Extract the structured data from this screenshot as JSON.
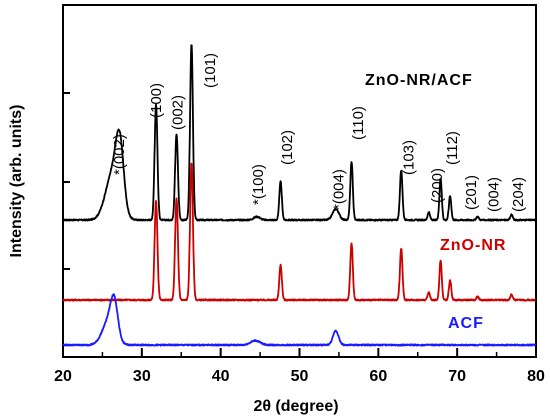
{
  "chart_data": {
    "type": "line",
    "xlabel": "2θ (degree)",
    "ylabel": "Intensity (arb. units)",
    "xlim": [
      20,
      80
    ],
    "x_ticks": [
      "20",
      "30",
      "40",
      "50",
      "60",
      "70",
      "80"
    ],
    "y_ticks_labeled": false,
    "grid": false,
    "stacked_offsets": true,
    "series": [
      {
        "name": "ZnO-NR/ACF",
        "color": "#000000",
        "baseline": 2.0,
        "peaks": [
          {
            "x": 26.3,
            "h": 0.42,
            "w": 0.9
          },
          {
            "x": 27.2,
            "h": 0.55,
            "w": 0.5
          },
          {
            "x": 31.8,
            "h": 1.05,
            "w": 0.18
          },
          {
            "x": 34.4,
            "h": 0.78,
            "w": 0.18
          },
          {
            "x": 36.3,
            "h": 1.6,
            "w": 0.18
          },
          {
            "x": 44.6,
            "h": 0.03,
            "w": 0.4
          },
          {
            "x": 47.6,
            "h": 0.35,
            "w": 0.16
          },
          {
            "x": 54.6,
            "h": 0.1,
            "w": 0.4
          },
          {
            "x": 56.6,
            "h": 0.53,
            "w": 0.16
          },
          {
            "x": 62.9,
            "h": 0.45,
            "w": 0.16
          },
          {
            "x": 66.4,
            "h": 0.07,
            "w": 0.15
          },
          {
            "x": 67.9,
            "h": 0.38,
            "w": 0.15
          },
          {
            "x": 69.1,
            "h": 0.22,
            "w": 0.15
          },
          {
            "x": 72.6,
            "h": 0.03,
            "w": 0.15
          },
          {
            "x": 76.9,
            "h": 0.05,
            "w": 0.15
          }
        ]
      },
      {
        "name": "ZnO-NR",
        "color": "#cc0000",
        "baseline": 1.0,
        "peaks": [
          {
            "x": 31.8,
            "h": 0.9,
            "w": 0.18
          },
          {
            "x": 34.4,
            "h": 0.92,
            "w": 0.18
          },
          {
            "x": 36.3,
            "h": 1.25,
            "w": 0.18
          },
          {
            "x": 47.6,
            "h": 0.32,
            "w": 0.16
          },
          {
            "x": 56.6,
            "h": 0.52,
            "w": 0.16
          },
          {
            "x": 62.9,
            "h": 0.47,
            "w": 0.16
          },
          {
            "x": 66.4,
            "h": 0.07,
            "w": 0.15
          },
          {
            "x": 67.9,
            "h": 0.36,
            "w": 0.15
          },
          {
            "x": 69.1,
            "h": 0.18,
            "w": 0.15
          },
          {
            "x": 72.6,
            "h": 0.03,
            "w": 0.15
          },
          {
            "x": 76.9,
            "h": 0.05,
            "w": 0.15
          }
        ]
      },
      {
        "name": "ACF",
        "color": "#1a1aff",
        "baseline": 0.0,
        "peaks": [
          {
            "x": 25.8,
            "h": 0.22,
            "w": 0.8
          },
          {
            "x": 26.5,
            "h": 0.3,
            "w": 0.45
          },
          {
            "x": 44.4,
            "h": 0.04,
            "w": 0.6
          },
          {
            "x": 54.6,
            "h": 0.13,
            "w": 0.35
          }
        ]
      }
    ],
    "peak_annotations": [
      {
        "text": "*(002)",
        "x": 27.0
      },
      {
        "text": "(100)",
        "x": 31.7
      },
      {
        "text": "(002)",
        "x": 34.4
      },
      {
        "text": "(101)",
        "x": 38.5
      },
      {
        "text": "*(100)",
        "x": 44.6
      },
      {
        "text": "(102)",
        "x": 48.3
      },
      {
        "text": "*(004)",
        "x": 54.8
      },
      {
        "text": "(110)",
        "x": 57.3
      },
      {
        "text": "(103)",
        "x": 63.7
      },
      {
        "text": "(200)",
        "x": 67.3
      },
      {
        "text": "(112)",
        "x": 69.2
      },
      {
        "text": "(201)",
        "x": 71.6
      },
      {
        "text": "(004)",
        "x": 74.5
      },
      {
        "text": "(204)",
        "x": 77.6
      }
    ]
  }
}
